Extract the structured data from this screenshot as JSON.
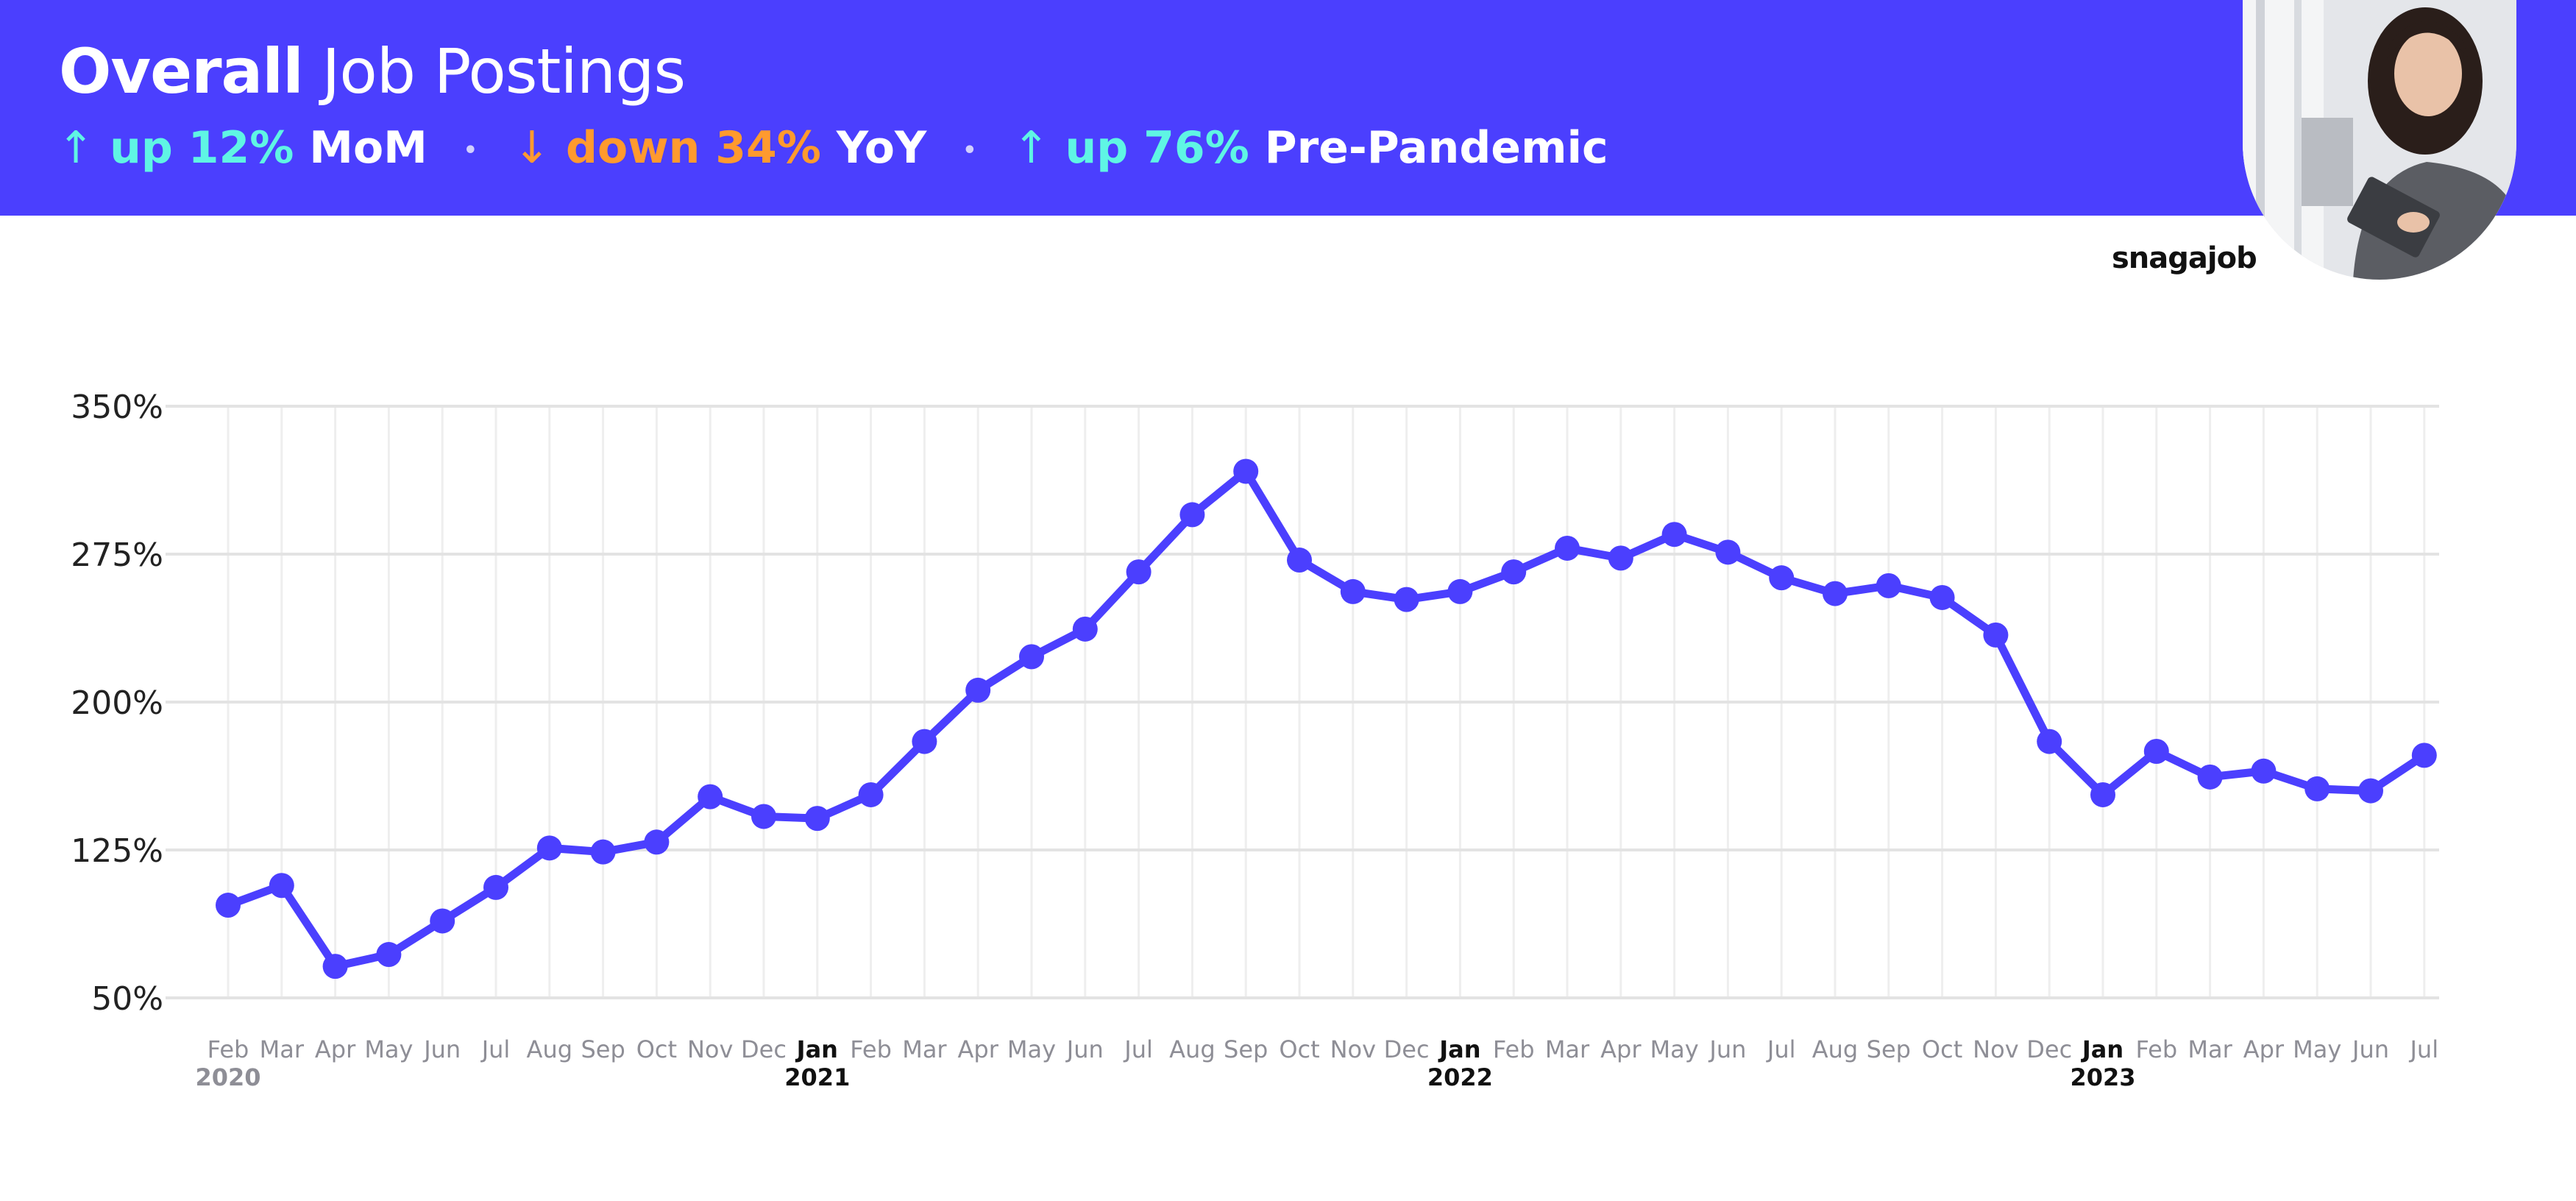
{
  "header": {
    "title_bold": "Overall",
    "title_light": "Job Postings",
    "stats": [
      {
        "arrow": "↑",
        "direction_word": "up",
        "value": "12%",
        "period": "MoM",
        "color": "#5ff5e4"
      },
      {
        "arrow": "↓",
        "direction_word": "down",
        "value": "34%",
        "period": "YoY",
        "color": "#ff9a2e"
      },
      {
        "arrow": "↑",
        "direction_word": "up",
        "value": "76%",
        "period": "Pre-Pandemic",
        "color": "#5ff5e4"
      }
    ],
    "separator": "•",
    "banner_color": "#4b3ffe"
  },
  "brand": {
    "name": "snagajob"
  },
  "chart_data": {
    "type": "line",
    "title": "Overall Job Postings",
    "xlabel": "",
    "ylabel": "",
    "ylim": [
      50,
      350
    ],
    "yticks": [
      "350%",
      "275%",
      "200%",
      "125%",
      "50%"
    ],
    "ytick_values": [
      350,
      275,
      200,
      125,
      50
    ],
    "grid": true,
    "line_color": "#4b3ffe",
    "categories": [
      "Feb",
      "Mar",
      "Apr",
      "May",
      "Jun",
      "Jul",
      "Aug",
      "Sep",
      "Oct",
      "Nov",
      "Dec",
      "Jan",
      "Feb",
      "Mar",
      "Apr",
      "May",
      "Jun",
      "Jul",
      "Aug",
      "Sep",
      "Oct",
      "Nov",
      "Dec",
      "Jan",
      "Feb",
      "Mar",
      "Apr",
      "May",
      "Jun",
      "Jul",
      "Aug",
      "Sep",
      "Oct",
      "Nov",
      "Dec",
      "Jan",
      "Feb",
      "Mar",
      "Apr",
      "May",
      "Jun",
      "Jul"
    ],
    "year_labels": [
      {
        "index": 0,
        "label": "2020"
      },
      {
        "index": 11,
        "label": "2021"
      },
      {
        "index": 23,
        "label": "2022"
      },
      {
        "index": 35,
        "label": "2023"
      }
    ],
    "series": [
      {
        "name": "Overall Job Postings",
        "values": [
          97,
          107,
          66,
          72,
          89,
          106,
          126,
          124,
          129,
          152,
          142,
          141,
          153,
          180,
          206,
          223,
          237,
          266,
          295,
          317,
          272,
          256,
          252,
          256,
          266,
          278,
          273,
          285,
          276,
          263,
          255,
          259,
          253,
          234,
          180,
          153,
          175,
          162,
          165,
          156,
          155,
          173
        ]
      }
    ]
  }
}
